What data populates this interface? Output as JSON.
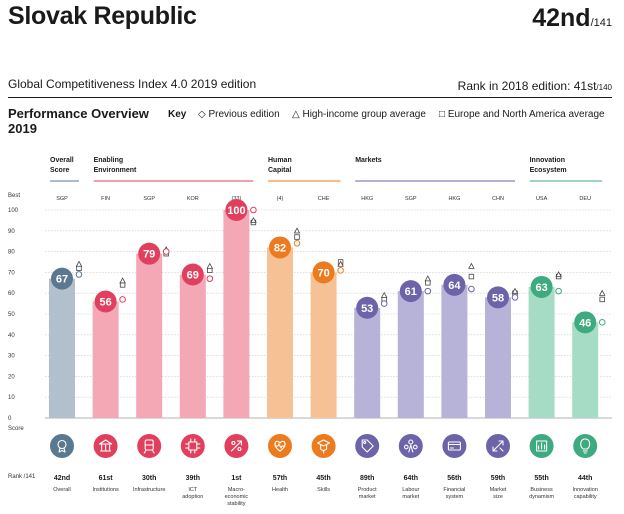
{
  "header": {
    "country": "Slovak Republic",
    "rank": "42nd",
    "rank_of": "/141",
    "edition": "Global Competitiveness Index 4.0 2019 edition",
    "prev_rank_label": "Rank in 2018 edition: 41st",
    "prev_rank_of": "/140"
  },
  "overview": {
    "title_line1": "Performance Overview",
    "title_line2": "2019",
    "key_label": "Key",
    "key_items": [
      {
        "symbol": "◇",
        "label": "Previous edition"
      },
      {
        "symbol": "△",
        "label": "High-income group average"
      },
      {
        "symbol": "□",
        "label": "Europe and North America average"
      }
    ]
  },
  "chart_data": {
    "type": "bar",
    "ylim": [
      0,
      100
    ],
    "yticks": [
      0,
      10,
      20,
      30,
      40,
      50,
      60,
      70,
      80,
      90,
      100
    ],
    "y_top_label": "Best",
    "y_bottom_label": "Score",
    "rank_row_label": "Rank /141",
    "groups": [
      {
        "label_lines": [
          "Overall",
          "Score"
        ],
        "color": "#5a7890",
        "start": 0,
        "count": 1
      },
      {
        "label_lines": [
          "Enabling",
          "Environment"
        ],
        "color": "#e0405e",
        "start": 1,
        "count": 4
      },
      {
        "label_lines": [
          "Human",
          "Capital"
        ],
        "color": "#ec7a1e",
        "start": 5,
        "count": 2
      },
      {
        "label_lines": [
          "Markets"
        ],
        "color": "#6c63a8",
        "start": 7,
        "count": 4
      },
      {
        "label_lines": [
          "Innovation",
          "Ecosystem"
        ],
        "color": "#3daa80",
        "start": 11,
        "count": 2
      }
    ],
    "pillars": [
      {
        "name_lines": [
          "Overall"
        ],
        "best": "SGP",
        "score": 67,
        "prev": 69,
        "high_income": 74,
        "europe": 72,
        "rank": "42nd",
        "bar": "#b2c0cd",
        "circle": "#5a7890",
        "icon": "medal-icon"
      },
      {
        "name_lines": [
          "Institutions"
        ],
        "best": "FIN",
        "score": 56,
        "prev": 57,
        "high_income": 66,
        "europe": 64,
        "rank": "61st",
        "bar": "#f4a8b6",
        "circle": "#e0405e",
        "icon": "bank-icon"
      },
      {
        "name_lines": [
          "Infrastructure"
        ],
        "best": "SGP",
        "score": 79,
        "prev": 80,
        "high_income": 81,
        "europe": 79,
        "rank": "30th",
        "bar": "#f4a8b6",
        "circle": "#e0405e",
        "icon": "train-icon"
      },
      {
        "name_lines": [
          "ICT",
          "adoption"
        ],
        "best": "KOR",
        "score": 69,
        "prev": 67,
        "high_income": 73,
        "europe": 71,
        "rank": "39th",
        "bar": "#f4a8b6",
        "circle": "#e0405e",
        "icon": "chip-icon"
      },
      {
        "name_lines": [
          "Macro-",
          "economic",
          "stability"
        ],
        "best": "(33)",
        "score": 100,
        "prev": 100,
        "high_income": 95,
        "europe": 94,
        "rank": "1st",
        "bar": "#f4a8b6",
        "circle": "#e0405e",
        "icon": "percent-icon"
      },
      {
        "name_lines": [
          "Health"
        ],
        "best": "(4)",
        "score": 82,
        "prev": 84,
        "high_income": 90,
        "europe": 87,
        "rank": "57th",
        "bar": "#f7c196",
        "circle": "#ec7a1e",
        "icon": "heart-icon"
      },
      {
        "name_lines": [
          "Skills"
        ],
        "best": "CHE",
        "score": 70,
        "prev": 71,
        "high_income": 74,
        "europe": 75,
        "rank": "45th",
        "bar": "#f7c196",
        "circle": "#ec7a1e",
        "icon": "graduation-icon"
      },
      {
        "name_lines": [
          "Product",
          "market"
        ],
        "best": "HKG",
        "score": 53,
        "prev": 55,
        "high_income": 59,
        "europe": 57,
        "rank": "89th",
        "bar": "#b6b2d8",
        "circle": "#6c63a8",
        "icon": "tag-icon"
      },
      {
        "name_lines": [
          "Labour",
          "market"
        ],
        "best": "SGP",
        "score": 61,
        "prev": 61,
        "high_income": 67,
        "europe": 65,
        "rank": "64th",
        "bar": "#b6b2d8",
        "circle": "#6c63a8",
        "icon": "people-icon"
      },
      {
        "name_lines": [
          "Financial",
          "system"
        ],
        "best": "HKG",
        "score": 64,
        "prev": 62,
        "high_income": 73,
        "europe": 68,
        "rank": "56th",
        "bar": "#b6b2d8",
        "circle": "#6c63a8",
        "icon": "card-icon"
      },
      {
        "name_lines": [
          "Market",
          "size"
        ],
        "best": "CHN",
        "score": 58,
        "prev": 58,
        "high_income": 61,
        "europe": 60,
        "rank": "59th",
        "bar": "#b6b2d8",
        "circle": "#6c63a8",
        "icon": "expand-icon"
      },
      {
        "name_lines": [
          "Business",
          "dynamism"
        ],
        "best": "USA",
        "score": 63,
        "prev": 61,
        "high_income": 69,
        "europe": 68,
        "rank": "55th",
        "bar": "#a6dcc6",
        "circle": "#3daa80",
        "icon": "chart-icon"
      },
      {
        "name_lines": [
          "Innovation",
          "capability"
        ],
        "best": "DEU",
        "score": 46,
        "prev": 46,
        "high_income": 60,
        "europe": 57,
        "rank": "44th",
        "bar": "#a6dcc6",
        "circle": "#3daa80",
        "icon": "lightbulb-icon"
      }
    ]
  }
}
